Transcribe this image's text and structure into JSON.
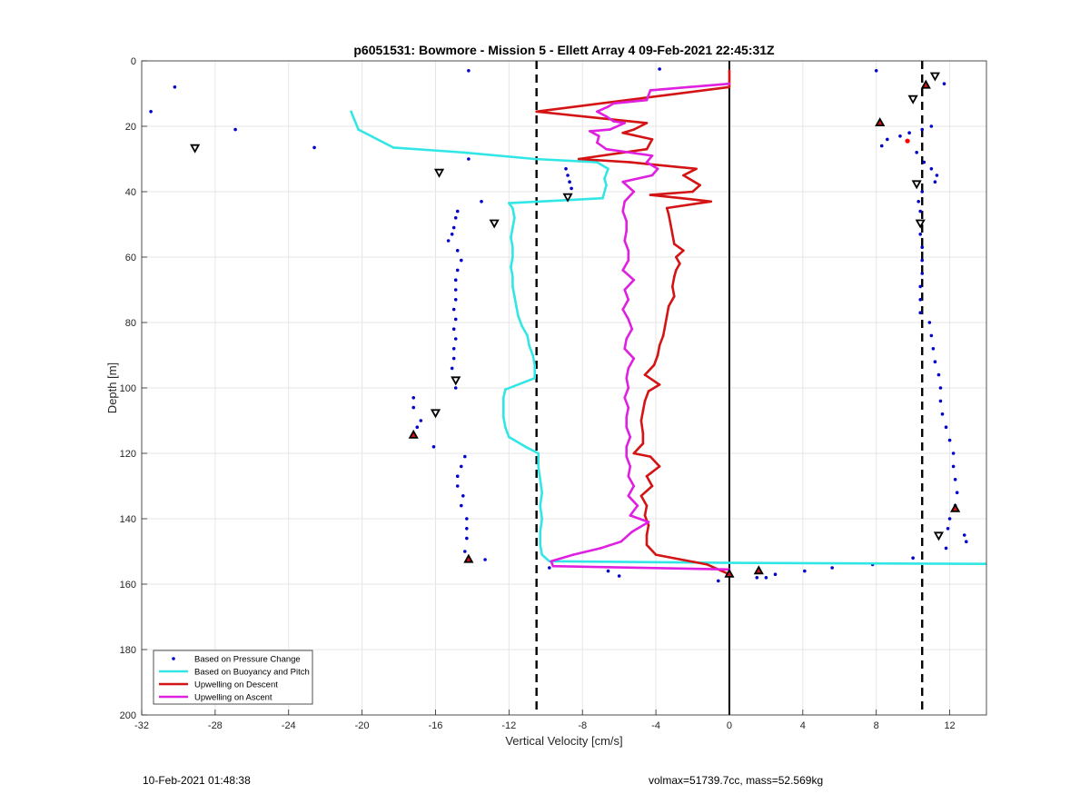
{
  "chart_data": {
    "type": "line",
    "title": "p6051531: Bowmore - Mission 5 - Ellett Array 4 09-Feb-2021 22:45:31Z",
    "xlabel": "Vertical Velocity [cm/s]",
    "ylabel": "Depth [m]",
    "xlim": [
      -32,
      14
    ],
    "ylim": [
      0,
      200
    ],
    "y_reversed": true,
    "grid": true,
    "legend_position": "bottom-left",
    "xticks": [
      -32,
      -28,
      -24,
      -20,
      -16,
      -12,
      -8,
      -4,
      0,
      4,
      8,
      12
    ],
    "yticks": [
      0,
      20,
      40,
      60,
      80,
      100,
      120,
      140,
      160,
      180,
      200
    ],
    "reference_lines": [
      {
        "x": -10.5,
        "style": "dashed",
        "color": "#000000"
      },
      {
        "x": 0,
        "style": "solid",
        "color": "#000000"
      },
      {
        "x": 10.5,
        "style": "dashed",
        "color": "#000000"
      }
    ],
    "series": [
      {
        "name": "Based on Pressure Change",
        "kind": "scatter",
        "color": "#0000cc",
        "points": [
          [
            -14.2,
            3
          ],
          [
            -3.8,
            2.5
          ],
          [
            8,
            3
          ],
          [
            -30.2,
            8
          ],
          [
            11.7,
            7
          ],
          [
            -31.5,
            15.5
          ],
          [
            -26.9,
            21
          ],
          [
            -22.6,
            26.5
          ],
          [
            -14.2,
            30
          ],
          [
            -8.9,
            33
          ],
          [
            -8.8,
            35
          ],
          [
            -8.7,
            37
          ],
          [
            -8.6,
            39
          ],
          [
            11,
            20
          ],
          [
            10.5,
            21
          ],
          [
            9.8,
            22
          ],
          [
            9.3,
            23
          ],
          [
            8.6,
            24
          ],
          [
            8.3,
            26
          ],
          [
            10.2,
            28
          ],
          [
            10.6,
            31
          ],
          [
            11,
            33
          ],
          [
            11.3,
            35
          ],
          [
            11.2,
            37
          ],
          [
            10.5,
            40
          ],
          [
            10.3,
            43
          ],
          [
            10.4,
            46
          ],
          [
            10.3,
            49
          ],
          [
            10.4,
            53
          ],
          [
            10.5,
            57
          ],
          [
            10.5,
            61
          ],
          [
            10.5,
            65
          ],
          [
            10.4,
            69
          ],
          [
            10.4,
            73
          ],
          [
            10.4,
            77
          ],
          [
            10.9,
            80
          ],
          [
            11,
            84
          ],
          [
            11.1,
            88
          ],
          [
            11.2,
            92
          ],
          [
            11.4,
            96
          ],
          [
            11.5,
            100
          ],
          [
            11.5,
            104
          ],
          [
            11.6,
            108
          ],
          [
            11.8,
            112
          ],
          [
            12,
            116
          ],
          [
            12.2,
            120
          ],
          [
            12.2,
            124
          ],
          [
            12.3,
            128
          ],
          [
            12.4,
            132
          ],
          [
            12.3,
            136
          ],
          [
            12,
            140
          ],
          [
            11.9,
            143
          ],
          [
            12.9,
            147
          ],
          [
            12.8,
            145
          ],
          [
            11.8,
            149
          ],
          [
            10,
            152
          ],
          [
            7.8,
            154
          ],
          [
            5.6,
            155
          ],
          [
            4.1,
            156
          ],
          [
            2.5,
            157
          ],
          [
            2,
            158
          ],
          [
            1.5,
            158
          ],
          [
            -13.5,
            43
          ],
          [
            -14.8,
            46
          ],
          [
            -14.9,
            48
          ],
          [
            -15,
            51
          ],
          [
            -15.1,
            53
          ],
          [
            -15.3,
            55
          ],
          [
            -14.8,
            58
          ],
          [
            -14.6,
            61
          ],
          [
            -14.8,
            64
          ],
          [
            -14.9,
            67
          ],
          [
            -14.9,
            70
          ],
          [
            -14.9,
            73
          ],
          [
            -15,
            76
          ],
          [
            -14.9,
            79
          ],
          [
            -15,
            82
          ],
          [
            -14.9,
            85
          ],
          [
            -15,
            88
          ],
          [
            -15,
            91
          ],
          [
            -15.1,
            94
          ],
          [
            -14.9,
            100
          ],
          [
            -17.2,
            103
          ],
          [
            -17.2,
            106
          ],
          [
            -16.8,
            110
          ],
          [
            -17,
            112
          ],
          [
            -16.1,
            118
          ],
          [
            -14.4,
            121
          ],
          [
            -14.6,
            124
          ],
          [
            -14.8,
            127
          ],
          [
            -14.8,
            130
          ],
          [
            -14.5,
            133
          ],
          [
            -14.6,
            136
          ],
          [
            -14.3,
            140
          ],
          [
            -14.3,
            143
          ],
          [
            -14.3,
            146
          ],
          [
            -14.4,
            150
          ],
          [
            -13.3,
            152.5
          ],
          [
            -9.8,
            155
          ],
          [
            -6.6,
            156
          ],
          [
            -6.0,
            157.5
          ],
          [
            -0.6,
            159
          ]
        ]
      },
      {
        "name": "Based on Buoyancy and Pitch",
        "kind": "line",
        "color": "#33e6e6",
        "points": [
          [
            -20.6,
            15.5
          ],
          [
            -20.2,
            21
          ],
          [
            -18.3,
            26.5
          ],
          [
            -14.5,
            28
          ],
          [
            -10.6,
            30
          ],
          [
            -7.2,
            31
          ],
          [
            -6.6,
            33
          ],
          [
            -6.8,
            36
          ],
          [
            -6.7,
            38
          ],
          [
            -6.9,
            42
          ],
          [
            -12,
            43.5
          ],
          [
            -11.8,
            45
          ],
          [
            -11.7,
            48
          ],
          [
            -11.8,
            51
          ],
          [
            -11.9,
            54
          ],
          [
            -11.8,
            57
          ],
          [
            -11.8,
            60
          ],
          [
            -11.9,
            63
          ],
          [
            -11.8,
            66
          ],
          [
            -11.8,
            69
          ],
          [
            -11.7,
            72
          ],
          [
            -11.6,
            75
          ],
          [
            -11.5,
            78
          ],
          [
            -11.3,
            81
          ],
          [
            -11.0,
            84
          ],
          [
            -10.9,
            87
          ],
          [
            -10.7,
            90
          ],
          [
            -10.6,
            93
          ],
          [
            -10.6,
            97
          ],
          [
            -12.2,
            100.5
          ],
          [
            -12.3,
            103
          ],
          [
            -12.3,
            106
          ],
          [
            -12.3,
            109
          ],
          [
            -12.2,
            112
          ],
          [
            -12.0,
            115
          ],
          [
            -11.1,
            118
          ],
          [
            -10.4,
            120
          ],
          [
            -10.4,
            124
          ],
          [
            -10.3,
            128
          ],
          [
            -10.2,
            132
          ],
          [
            -10.3,
            136
          ],
          [
            -10.2,
            140
          ],
          [
            -10.3,
            144
          ],
          [
            -10.3,
            148
          ],
          [
            -10.2,
            151
          ],
          [
            -9.8,
            153
          ],
          [
            0,
            153.5
          ],
          [
            14,
            153.8
          ]
        ]
      },
      {
        "name": "Upwelling on Descent",
        "kind": "line",
        "color": "#d41414",
        "points": [
          [
            0,
            3
          ],
          [
            0,
            8
          ],
          [
            -10.5,
            15.5
          ],
          [
            -4.5,
            19
          ],
          [
            -5.2,
            21
          ],
          [
            -5.8,
            22
          ],
          [
            -4.2,
            24
          ],
          [
            -4.5,
            27
          ],
          [
            -8.2,
            30
          ],
          [
            -5.4,
            31
          ],
          [
            -4.5,
            31.5
          ],
          [
            -1.8,
            33
          ],
          [
            -2.5,
            35
          ],
          [
            -1.6,
            38
          ],
          [
            -2,
            40
          ],
          [
            -4.3,
            41
          ],
          [
            -2.6,
            42
          ],
          [
            -1,
            43
          ],
          [
            -3.4,
            45
          ],
          [
            -3.3,
            47
          ],
          [
            -3.2,
            50
          ],
          [
            -3.1,
            53
          ],
          [
            -3.0,
            56
          ],
          [
            -2.5,
            58
          ],
          [
            -2.9,
            60
          ],
          [
            -2.7,
            62
          ],
          [
            -2.9,
            64
          ],
          [
            -3.0,
            66
          ],
          [
            -3.1,
            69
          ],
          [
            -3.0,
            72
          ],
          [
            -3.3,
            75
          ],
          [
            -3.4,
            78
          ],
          [
            -3.5,
            81
          ],
          [
            -3.6,
            84
          ],
          [
            -3.8,
            87
          ],
          [
            -3.9,
            90
          ],
          [
            -4.1,
            93
          ],
          [
            -4.6,
            96
          ],
          [
            -3.8,
            99
          ],
          [
            -4.4,
            101
          ],
          [
            -4.6,
            104
          ],
          [
            -4.7,
            107
          ],
          [
            -4.8,
            110
          ],
          [
            -4.7,
            114
          ],
          [
            -4.7,
            117
          ],
          [
            -5.2,
            120
          ],
          [
            -4.3,
            121
          ],
          [
            -3.8,
            124
          ],
          [
            -4.5,
            127
          ],
          [
            -4.2,
            130
          ],
          [
            -4.8,
            133
          ],
          [
            -4.5,
            136
          ],
          [
            -4.6,
            139
          ],
          [
            -4.4,
            142
          ],
          [
            -4.5,
            145
          ],
          [
            -4.5,
            148
          ],
          [
            -4.0,
            151
          ],
          [
            -1.2,
            154
          ],
          [
            0,
            157
          ]
        ]
      },
      {
        "name": "Upwelling on Ascent",
        "kind": "line",
        "color": "#e020e0",
        "points": [
          [
            0,
            7
          ],
          [
            -2.2,
            8
          ],
          [
            -4.3,
            9
          ],
          [
            -4.5,
            12
          ],
          [
            -6.3,
            13
          ],
          [
            -6.6,
            14
          ],
          [
            -7.2,
            15.5
          ],
          [
            -6.7,
            17
          ],
          [
            -6.3,
            18.5
          ],
          [
            -5.7,
            19
          ],
          [
            -6.5,
            21
          ],
          [
            -7.6,
            21.5
          ],
          [
            -7.1,
            23
          ],
          [
            -7.2,
            25
          ],
          [
            -6.7,
            27
          ],
          [
            -4.2,
            29
          ],
          [
            -4.5,
            31
          ],
          [
            -3.9,
            33
          ],
          [
            -4.2,
            35
          ],
          [
            -5.8,
            37
          ],
          [
            -5.2,
            40
          ],
          [
            -5.7,
            43
          ],
          [
            -5.8,
            46
          ],
          [
            -5.6,
            49
          ],
          [
            -5.6,
            52
          ],
          [
            -5.7,
            55
          ],
          [
            -5.5,
            58
          ],
          [
            -5.5,
            61
          ],
          [
            -5.8,
            64
          ],
          [
            -5.2,
            67
          ],
          [
            -5.7,
            70
          ],
          [
            -5.5,
            73
          ],
          [
            -5.8,
            76
          ],
          [
            -5.5,
            79
          ],
          [
            -5.3,
            82
          ],
          [
            -5.6,
            85
          ],
          [
            -5.7,
            88
          ],
          [
            -5.2,
            91
          ],
          [
            -5.5,
            94
          ],
          [
            -5.6,
            97
          ],
          [
            -5.5,
            100
          ],
          [
            -5.7,
            103
          ],
          [
            -5.5,
            106
          ],
          [
            -5.6,
            109
          ],
          [
            -5.6,
            112
          ],
          [
            -5.4,
            115
          ],
          [
            -5.6,
            118
          ],
          [
            -5.6,
            121
          ],
          [
            -5.4,
            124
          ],
          [
            -5.5,
            127
          ],
          [
            -5.2,
            130
          ],
          [
            -5.5,
            133
          ],
          [
            -5.0,
            136
          ],
          [
            -5.4,
            139
          ],
          [
            -4.4,
            141
          ],
          [
            -5.3,
            144
          ],
          [
            -5.9,
            147
          ],
          [
            -7.0,
            149
          ],
          [
            -8.5,
            151
          ],
          [
            -9.7,
            153
          ],
          [
            -9.6,
            154.5
          ],
          [
            0,
            155.5
          ]
        ]
      },
      {
        "name": "Up triangle markers",
        "kind": "marker-up",
        "color": "#000000",
        "points": [
          [
            10.7,
            7.5
          ],
          [
            8.2,
            19
          ],
          [
            0,
            157
          ],
          [
            1.6,
            156
          ],
          [
            -14.2,
            152.5
          ],
          [
            -17.2,
            114.5
          ],
          [
            12.3,
            137
          ]
        ]
      },
      {
        "name": "Down triangle markers",
        "kind": "marker-down",
        "color": "#000000",
        "points": [
          [
            11.2,
            4.5
          ],
          [
            10,
            11.5
          ],
          [
            -15.8,
            34
          ],
          [
            -12.8,
            49.5
          ],
          [
            10.2,
            37.5
          ],
          [
            10.4,
            49.5
          ],
          [
            -14.9,
            97.5
          ],
          [
            -16,
            107.5
          ],
          [
            11.4,
            145
          ],
          [
            -8.8,
            41.5
          ],
          [
            -29.1,
            26.5
          ]
        ]
      },
      {
        "name": "Red point",
        "kind": "point",
        "color": "#ff0000",
        "points": [
          [
            9.7,
            24.5
          ]
        ]
      }
    ],
    "legend_series": [
      0,
      1,
      2,
      3
    ]
  },
  "footer": {
    "timestamp": "10-Feb-2021 01:48:38",
    "summary": "volmax=51739.7cc, mass=52.569kg"
  }
}
